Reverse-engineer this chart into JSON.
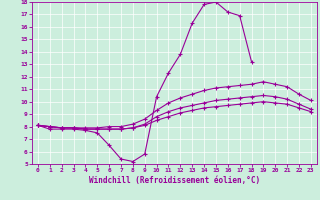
{
  "xlabel": "Windchill (Refroidissement éolien,°C)",
  "bg_color": "#cceedd",
  "line_color": "#990099",
  "xlim": [
    -0.5,
    23.5
  ],
  "ylim": [
    5,
    18
  ],
  "xticks": [
    0,
    1,
    2,
    3,
    4,
    5,
    6,
    7,
    8,
    9,
    10,
    11,
    12,
    13,
    14,
    15,
    16,
    17,
    18,
    19,
    20,
    21,
    22,
    23
  ],
  "yticks": [
    5,
    6,
    7,
    8,
    9,
    10,
    11,
    12,
    13,
    14,
    15,
    16,
    17,
    18
  ],
  "curve1_x": [
    0,
    1,
    2,
    3,
    4,
    5,
    6,
    7,
    8,
    9,
    10,
    11,
    12,
    13,
    14,
    15,
    16,
    17,
    18
  ],
  "curve1_y": [
    8.1,
    7.8,
    7.8,
    7.8,
    7.7,
    7.5,
    6.5,
    5.4,
    5.2,
    5.8,
    10.4,
    12.3,
    13.8,
    16.3,
    17.8,
    18.0,
    17.2,
    16.9,
    13.2
  ],
  "curve2_x": [
    0,
    1,
    2,
    3,
    4,
    5,
    6,
    7,
    8,
    9,
    10,
    11,
    12,
    13,
    14,
    15,
    16,
    17,
    18,
    19,
    20,
    21,
    22,
    23
  ],
  "curve2_y": [
    8.1,
    8.0,
    7.9,
    7.9,
    7.9,
    7.9,
    8.0,
    8.0,
    8.2,
    8.6,
    9.3,
    9.9,
    10.3,
    10.6,
    10.9,
    11.1,
    11.2,
    11.3,
    11.4,
    11.6,
    11.4,
    11.2,
    10.6,
    10.1
  ],
  "curve3_x": [
    0,
    1,
    2,
    3,
    4,
    5,
    6,
    7,
    8,
    9,
    10,
    11,
    12,
    13,
    14,
    15,
    16,
    17,
    18,
    19,
    20,
    21,
    22,
    23
  ],
  "curve3_y": [
    8.1,
    8.0,
    7.9,
    7.9,
    7.8,
    7.8,
    7.8,
    7.8,
    7.9,
    8.2,
    8.8,
    9.2,
    9.5,
    9.7,
    9.9,
    10.1,
    10.2,
    10.3,
    10.4,
    10.5,
    10.4,
    10.2,
    9.8,
    9.4
  ],
  "curve4_x": [
    0,
    1,
    2,
    3,
    4,
    5,
    6,
    7,
    8,
    9,
    10,
    11,
    12,
    13,
    14,
    15,
    16,
    17,
    18,
    19,
    20,
    21,
    22,
    23
  ],
  "curve4_y": [
    8.1,
    8.0,
    7.9,
    7.9,
    7.8,
    7.8,
    7.8,
    7.8,
    7.9,
    8.1,
    8.5,
    8.8,
    9.1,
    9.3,
    9.5,
    9.6,
    9.7,
    9.8,
    9.9,
    10.0,
    9.9,
    9.8,
    9.5,
    9.2
  ]
}
